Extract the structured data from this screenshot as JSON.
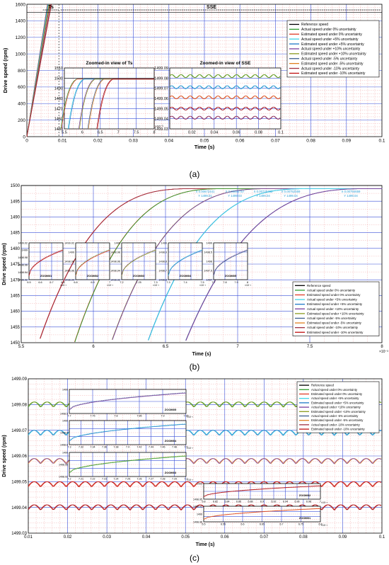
{
  "colors": {
    "reference": "#000000",
    "actual_0": "#2f9e2f",
    "estimated_0": "#e03c28",
    "actual_p5": "#3fd4e6",
    "estimated_p5": "#1f78c8",
    "actual_p10": "#7a3f9e",
    "estimated_p10": "#8a9a1e",
    "actual_m5": "#3d5e8e",
    "estimated_m5": "#e08020",
    "actual_m10": "#a03040",
    "estimated_m10": "#c01010",
    "grid_major": "#3b50d8",
    "grid_minor": "#f0a0a0",
    "callout_text": "#2a9fd6"
  },
  "legend_entries": [
    "Reference speed",
    "Actual speed under 0% uncertainty",
    "Estimated speed under 0% uncertainty",
    "Actual speed under +5% uncertainty",
    "Estimated speed under +5% uncertainty",
    "Actual speed under +10% uncertainty",
    "Estimated speed under +10% uncertainty",
    "Actual speed under -5% uncertainty",
    "Estimated speed under -5% uncertainty",
    "Actual speed under -10% uncertainty",
    "Estimated speed under -10% uncertainty"
  ],
  "chart_data": [
    {
      "id": "a",
      "panel_label": "(a)",
      "type": "line",
      "xlabel": "Time (s)",
      "ylabel": "Drive speed (rpm)",
      "xlim": [
        0,
        0.1
      ],
      "ylim": [
        0,
        1600
      ],
      "xticks": [
        "0",
        "0.01",
        "0.02",
        "0.03",
        "0.04",
        "0.05",
        "0.06",
        "0.07",
        "0.08",
        "0.09",
        "0.1"
      ],
      "yticks": [
        "0",
        "200",
        "400",
        "600",
        "800",
        "1000",
        "1200",
        "1400",
        "1600"
      ],
      "annotations": [
        "Ts",
        "SSE"
      ],
      "reference_speed": 1500,
      "series_rise_end_s": [
        0.0058,
        0.0059,
        0.0062,
        0.0064,
        0.0068
      ],
      "inset_ts": {
        "title": "Zoomed-in view of Ts",
        "xlim": [
          5.5,
          8
        ],
        "ylim": [
          1450,
          1510
        ],
        "xticks": [
          "5.5",
          "6",
          "6.5",
          "7",
          "7.5",
          "8"
        ],
        "yticks": [
          "1450",
          "1460",
          "1470",
          "1480",
          "1490",
          "1500",
          "1510"
        ],
        "x_multiplier": "×10⁻³",
        "rise_ms": [
          5.95,
          6.15,
          6.45,
          6.7,
          6.95
        ]
      },
      "inset_sse": {
        "title": "Zoomed-in view of SSE",
        "xlim": [
          0.01,
          0.1
        ],
        "ylim": [
          1499.03,
          1499.09
        ],
        "xticks": [
          "0.02",
          "0.04",
          "0.06",
          "0.08",
          "0.1"
        ],
        "yticks": [
          "1499.03",
          "1499.04",
          "1499.05",
          "1499.06",
          "1499.07",
          "1499.08",
          "1499.09"
        ],
        "levels": [
          1499.082,
          1499.071,
          1499.061,
          1499.05,
          1499.041
        ]
      }
    },
    {
      "id": "b",
      "panel_label": "(b)",
      "type": "line",
      "xlabel": "Time (s)",
      "ylabel": "Drive speed (rpm)",
      "xlim": [
        5.5,
        8
      ],
      "ylim": [
        1450,
        1500
      ],
      "x_multiplier": "×10⁻³",
      "xticks": [
        "5.5",
        "6",
        "6.5",
        "7",
        "7.5",
        "8"
      ],
      "yticks": [
        "1450",
        "1455",
        "1460",
        "1465",
        "1470",
        "1475",
        "1480",
        "1485",
        "1490",
        "1495",
        "1500"
      ],
      "callouts": [
        {
          "x": "X 0.00672441",
          "y": "Y 1499.01"
        },
        {
          "x": "X 0.00693757",
          "y": "Y 1499.03"
        },
        {
          "x": "X 0.00725792",
          "y": "Y 1499.04"
        },
        {
          "x": "X 0.00752559",
          "y": "Y 1499.04"
        },
        {
          "x": "X 0.00794659",
          "y": "Y 1499.04"
        }
      ],
      "zooms": [
        "ZOOM01",
        "ZOOM02",
        "ZOOM03",
        "ZOOM04",
        "ZOOM05"
      ],
      "zoom_xticks": [
        [
          "6.5",
          "6.6",
          "6.7",
          "6.8"
        ],
        [
          "6.8",
          "6.9",
          "7"
        ],
        [
          "7.2",
          "7.25",
          "7.3"
        ],
        [
          "7.3",
          "7.4",
          "7.5"
        ],
        [
          "7.7",
          "7.8",
          "7.9",
          "8"
        ]
      ],
      "zoom_yticks": [
        [
          "1499.02",
          "1499",
          "1498.98",
          "1498.96",
          "1498.94",
          "1498.92"
        ],
        [
          "1499.02",
          "1499",
          "1498.98",
          "1498.96",
          "1498.94"
        ],
        [
          "1499",
          "1498.98",
          "1498.96",
          "1498.94",
          "1498.92"
        ],
        [
          "1499",
          "1498.9",
          "1498.8",
          "1498.7",
          "1498.6"
        ],
        [
          "1499",
          "1498.5",
          "1498",
          "1497.5",
          "1497"
        ]
      ],
      "rise_start_ms": [
        5.55,
        5.8,
        6.05,
        6.3,
        6.55
      ],
      "rise_end_ms": [
        6.72,
        6.94,
        7.26,
        7.53,
        7.95
      ]
    },
    {
      "id": "c",
      "panel_label": "(c)",
      "type": "line",
      "xlabel": "Time (s)",
      "ylabel": "Drive speed (rpm)",
      "xlim": [
        0.01,
        0.1
      ],
      "ylim": [
        1499.03,
        1499.09
      ],
      "xticks": [
        "0.01",
        "0.02",
        "0.03",
        "0.04",
        "0.05",
        "0.06",
        "0.07",
        "0.08",
        "0.09",
        "0.1"
      ],
      "yticks": [
        "1499.03",
        "1499.04",
        "1499.05",
        "1499.06",
        "1499.07",
        "1499.08",
        "1499.09"
      ],
      "levels": [
        1499.08,
        1499.069,
        1499.058,
        1499.049,
        1499.04
      ],
      "ripple_amplitude": 0.002,
      "zooms": [
        {
          "name": "ZOOM05",
          "xticks": [
            "7.7",
            "7.75",
            "7.8",
            "7.85",
            "7.9",
            "7.95"
          ],
          "yticks": [
            "1499",
            "1498.5"
          ],
          "mult": "×10⁻³"
        },
        {
          "name": "ZOOM04",
          "xticks": [
            "7.3",
            "7.32",
            "7.34",
            "7.36",
            "7.38",
            "7.4",
            "7.42",
            "7.44",
            "7.46",
            "7.48",
            "7.5"
          ],
          "yticks": [
            "1499",
            "1498.8",
            "1498.6"
          ],
          "mult": "×10⁻³"
        },
        {
          "name": "ZOOM03",
          "xticks": [
            "7.2",
            "7.21",
            "7.22",
            "7.23",
            "7.24",
            "7.25",
            "7.26",
            "7.27",
            "7.28",
            "7.29",
            "7.3"
          ],
          "yticks": [
            "1499",
            "1498.96",
            "1498.92"
          ],
          "mult": "×10⁻³"
        },
        {
          "name": "ZOOM02",
          "xticks": [
            "6.8",
            "6.82",
            "6.84",
            "6.86",
            "6.88",
            "6.9",
            "6.92",
            "6.94",
            "6.96",
            "6.98",
            "7"
          ],
          "yticks": [
            "1499",
            "1498.95"
          ],
          "mult": "×10⁻³"
        },
        {
          "name": "ZOOM01",
          "xticks": [
            "6.5",
            "6.55",
            "6.6",
            "6.65",
            "6.7",
            "6.75",
            "6.8"
          ],
          "yticks": [
            "1499.02",
            "1499",
            "1498.98"
          ],
          "mult": "×10⁻³"
        }
      ]
    }
  ]
}
